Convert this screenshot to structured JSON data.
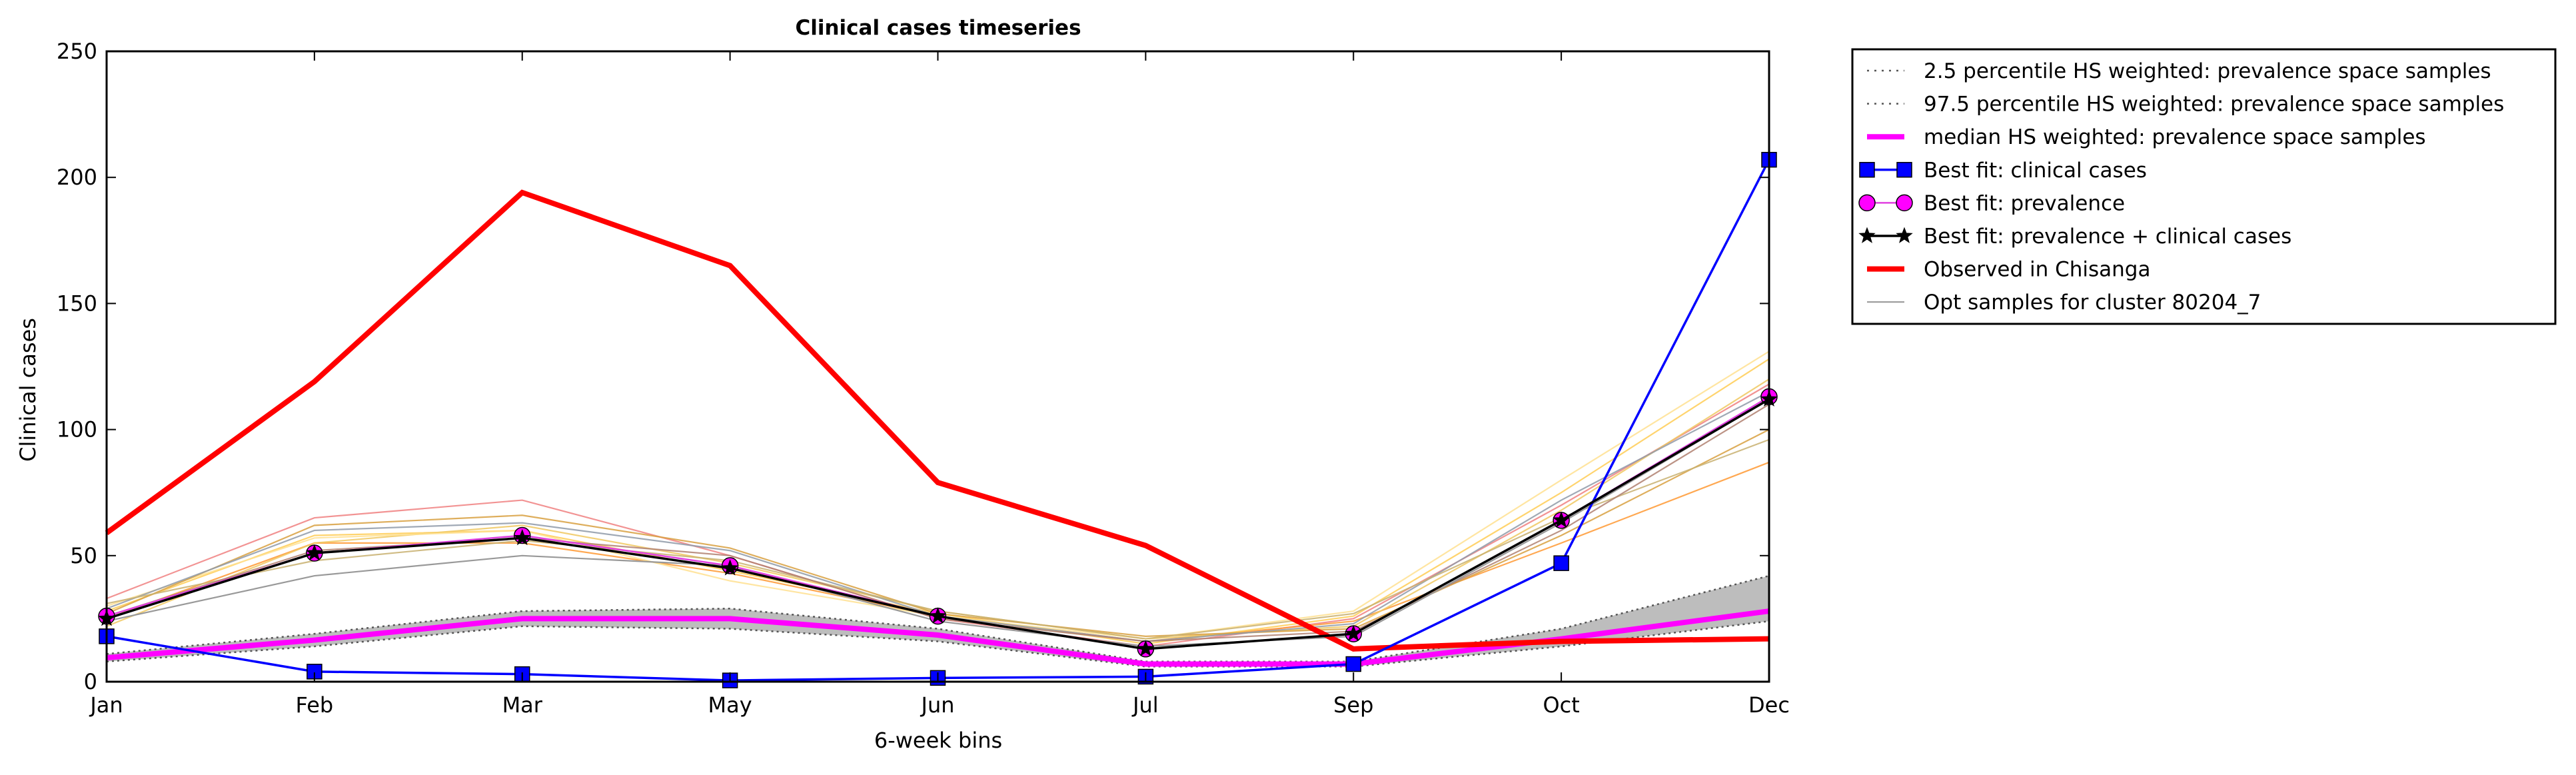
{
  "chart_data": {
    "type": "line",
    "title": "Clinical cases timeseries",
    "xlabel": "6-week bins",
    "ylabel": "Clinical cases",
    "categories": [
      "Jan",
      "Feb",
      "Mar",
      "May",
      "Jun",
      "Jul",
      "Sep",
      "Oct",
      "Dec"
    ],
    "ylim": [
      0,
      250
    ],
    "yticks": [
      0,
      50,
      100,
      150,
      200,
      250
    ],
    "grid": false,
    "legend_position": "outside-right-top",
    "series": [
      {
        "name": "2.5 percentile HS weighted: prevalence space samples",
        "style": "dotted",
        "color": "#555555",
        "values": [
          8,
          14,
          22,
          21,
          16,
          6,
          6,
          14,
          24
        ]
      },
      {
        "name": "97.5 percentile HS weighted: prevalence space samples",
        "style": "dotted",
        "color": "#555555",
        "values": [
          11,
          19,
          28,
          29,
          21,
          8,
          8,
          21,
          42
        ]
      },
      {
        "name": "median HS weighted: prevalence space samples",
        "style": "solid",
        "color": "#ff00ff",
        "values": [
          9.5,
          16.5,
          25,
          25,
          18.5,
          7,
          7,
          17,
          28
        ]
      },
      {
        "name": "Best fit: clinical cases",
        "style": "solid",
        "color": "#0000ff",
        "marker": "square",
        "values": [
          18,
          4,
          3,
          0.5,
          1.5,
          2,
          7,
          47,
          207
        ]
      },
      {
        "name": "Best fit: prevalence",
        "style": "solid",
        "color": "#ff00ff",
        "marker": "circle",
        "values": [
          26,
          51,
          58,
          46,
          26,
          13,
          19,
          64,
          113
        ]
      },
      {
        "name": "Best fit: prevalence + clinical cases",
        "style": "solid",
        "color": "#000000",
        "marker": "star",
        "values": [
          25,
          51,
          57,
          45,
          26,
          13,
          19,
          64,
          112
        ]
      },
      {
        "name": "Observed in Chisanga",
        "style": "solid",
        "color": "#ff0000",
        "values": [
          59,
          119,
          194,
          165,
          79,
          54,
          13,
          16,
          17
        ]
      },
      {
        "name": "Opt samples for cluster 80204_7",
        "style": "solid",
        "color": "#999999",
        "values": [
          24,
          42,
          50,
          46,
          24,
          14,
          18,
          63,
          112
        ]
      }
    ],
    "sample_lines": [
      {
        "color": "#f08080",
        "values": [
          33,
          65,
          72,
          50,
          25,
          14,
          25,
          70,
          118
        ]
      },
      {
        "color": "#ff9933",
        "values": [
          25,
          55,
          55,
          43,
          26,
          16,
          24,
          55,
          87
        ]
      },
      {
        "color": "#ffcc55",
        "values": [
          28,
          58,
          60,
          44,
          27,
          15,
          26,
          75,
          128
        ]
      },
      {
        "color": "#f0c860",
        "values": [
          22,
          55,
          62,
          47,
          28,
          17,
          22,
          68,
          120
        ]
      },
      {
        "color": "#ffe090",
        "values": [
          30,
          57,
          60,
          40,
          26,
          17,
          28,
          80,
          131
        ]
      },
      {
        "color": "#d8a040",
        "values": [
          27,
          62,
          66,
          53,
          27,
          18,
          21,
          58,
          100
        ]
      },
      {
        "color": "#8f9aa8",
        "values": [
          29,
          60,
          63,
          52,
          26,
          16,
          23,
          72,
          115
        ]
      },
      {
        "color": "#c8b070",
        "values": [
          31,
          48,
          56,
          48,
          28,
          17,
          27,
          65,
          96
        ]
      },
      {
        "color": "#b08070",
        "values": [
          26,
          52,
          57,
          50,
          25,
          16,
          20,
          60,
          110
        ]
      }
    ]
  }
}
